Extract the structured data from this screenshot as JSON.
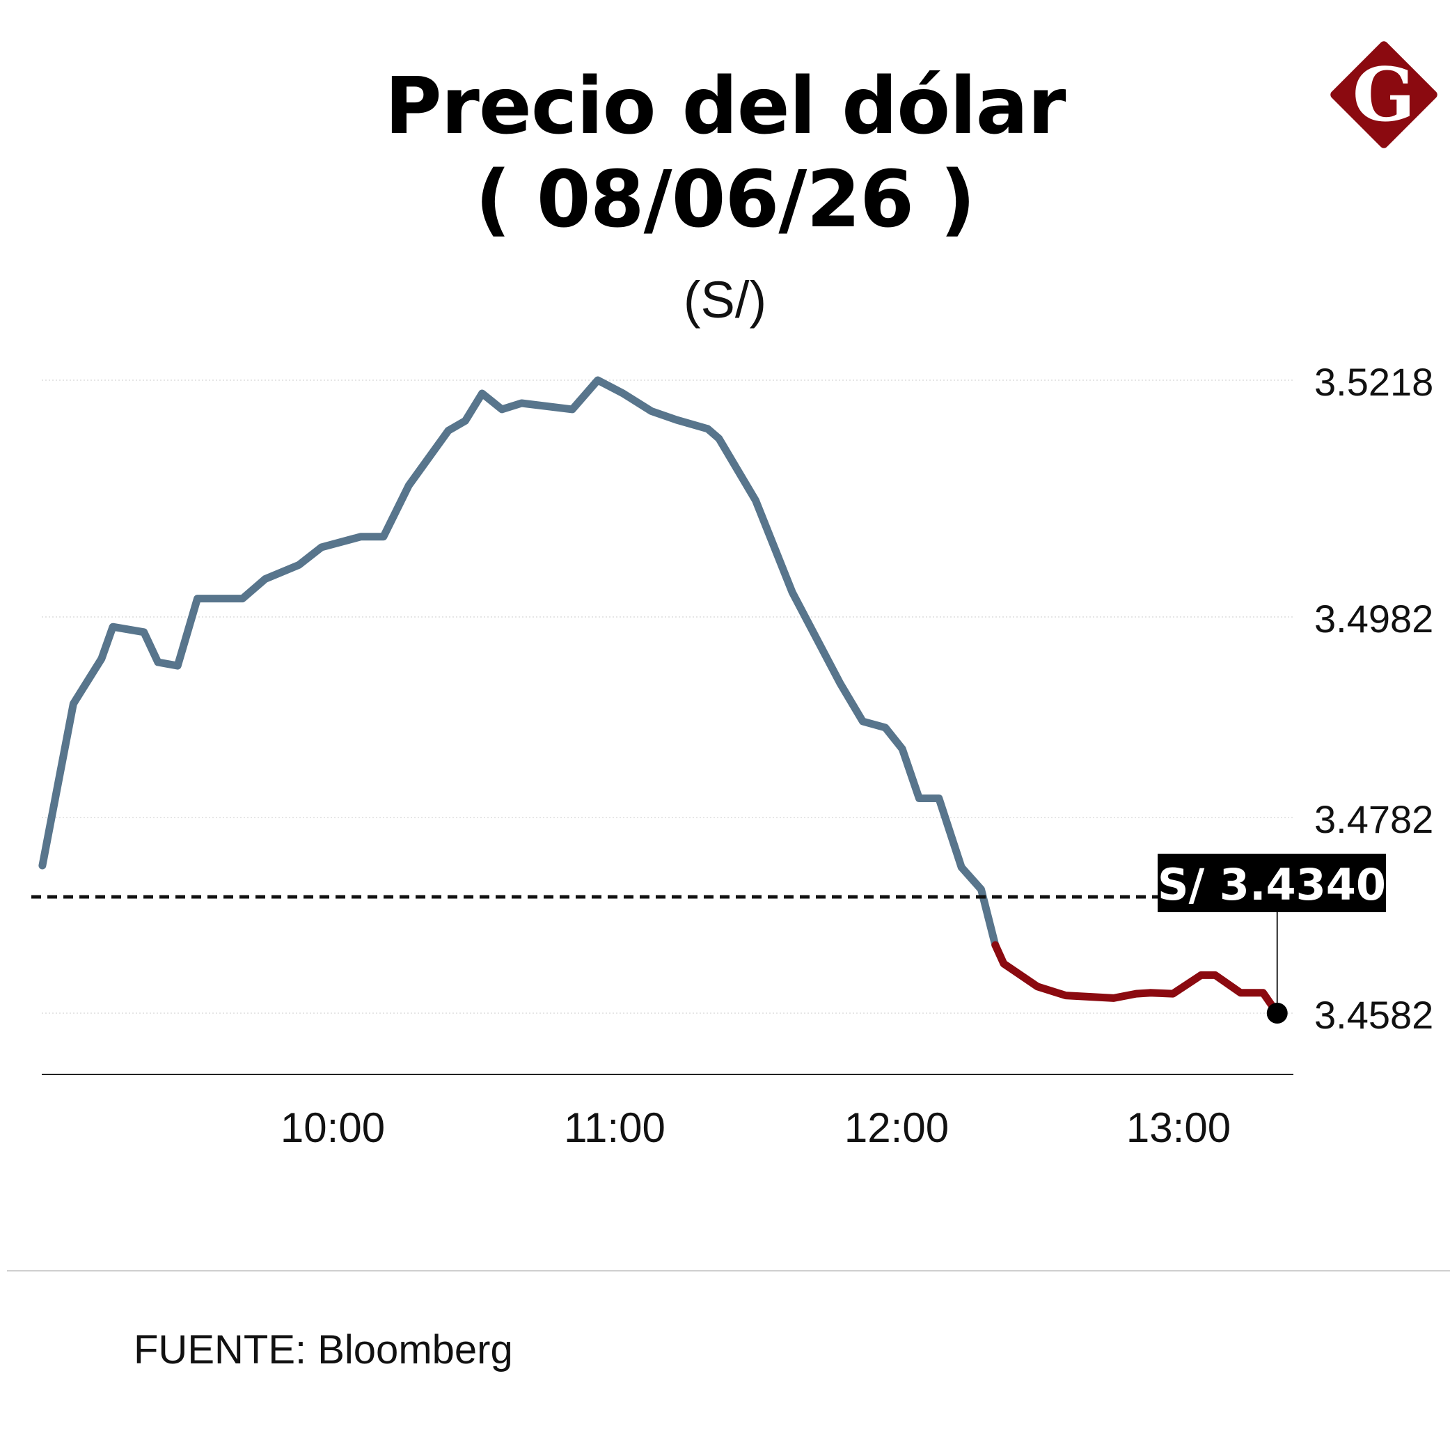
{
  "title_line1": "Precio del dólar",
  "title_line2": "( 08/06/26 )",
  "unit": "(S/)",
  "source": "FUENTE: Bloomberg",
  "logo_letter": "G",
  "colors": {
    "line_before": "#58758c",
    "line_after": "#8b0a10",
    "reference": "#111111",
    "logo": "#8b0a10",
    "grid": "#e6e6e6"
  },
  "chart_data": {
    "type": "line",
    "title": "Precio del dólar ( 08/06/26 )",
    "ylabel": "(S/)",
    "xlabel": "",
    "x_ticks": [
      "10:00",
      "11:00",
      "12:00",
      "13:00"
    ],
    "y_ticks": [
      "3.5218",
      "3.4982",
      "3.4782",
      "3.4582"
    ],
    "grid": true,
    "reference": {
      "value": 3.434,
      "label": "S/ 3.4340"
    },
    "split_at": 12.35,
    "x": [
      8.97,
      9.08,
      9.18,
      9.22,
      9.33,
      9.38,
      9.45,
      9.52,
      9.68,
      9.76,
      9.88,
      9.96,
      10.1,
      10.18,
      10.27,
      10.41,
      10.47,
      10.53,
      10.6,
      10.67,
      10.85,
      10.94,
      11.03,
      11.13,
      11.22,
      11.33,
      11.37,
      11.5,
      11.63,
      11.8,
      11.88,
      11.96,
      12.02,
      12.08,
      12.15,
      12.23,
      12.3,
      12.35,
      12.38,
      12.5,
      12.6,
      12.77,
      12.85,
      12.9,
      12.98,
      13.08,
      13.13,
      13.22,
      13.3,
      13.35
    ],
    "values": [
      3.4702,
      3.4885,
      3.4936,
      3.4972,
      3.4966,
      3.4932,
      3.4928,
      3.5004,
      3.5004,
      3.5026,
      3.5042,
      3.5062,
      3.5074,
      3.5074,
      3.5132,
      3.5194,
      3.5205,
      3.5236,
      3.5218,
      3.5225,
      3.5218,
      3.5251,
      3.5236,
      3.5216,
      3.5206,
      3.5196,
      3.5185,
      3.5115,
      3.5011,
      3.4908,
      3.4865,
      3.4858,
      3.4834,
      3.4778,
      3.4778,
      3.47,
      3.4675,
      3.4612,
      3.4591,
      3.4565,
      3.4555,
      3.4552,
      3.4557,
      3.4558,
      3.4557,
      3.4578,
      3.4578,
      3.4558,
      3.4558,
      3.4535
    ]
  }
}
